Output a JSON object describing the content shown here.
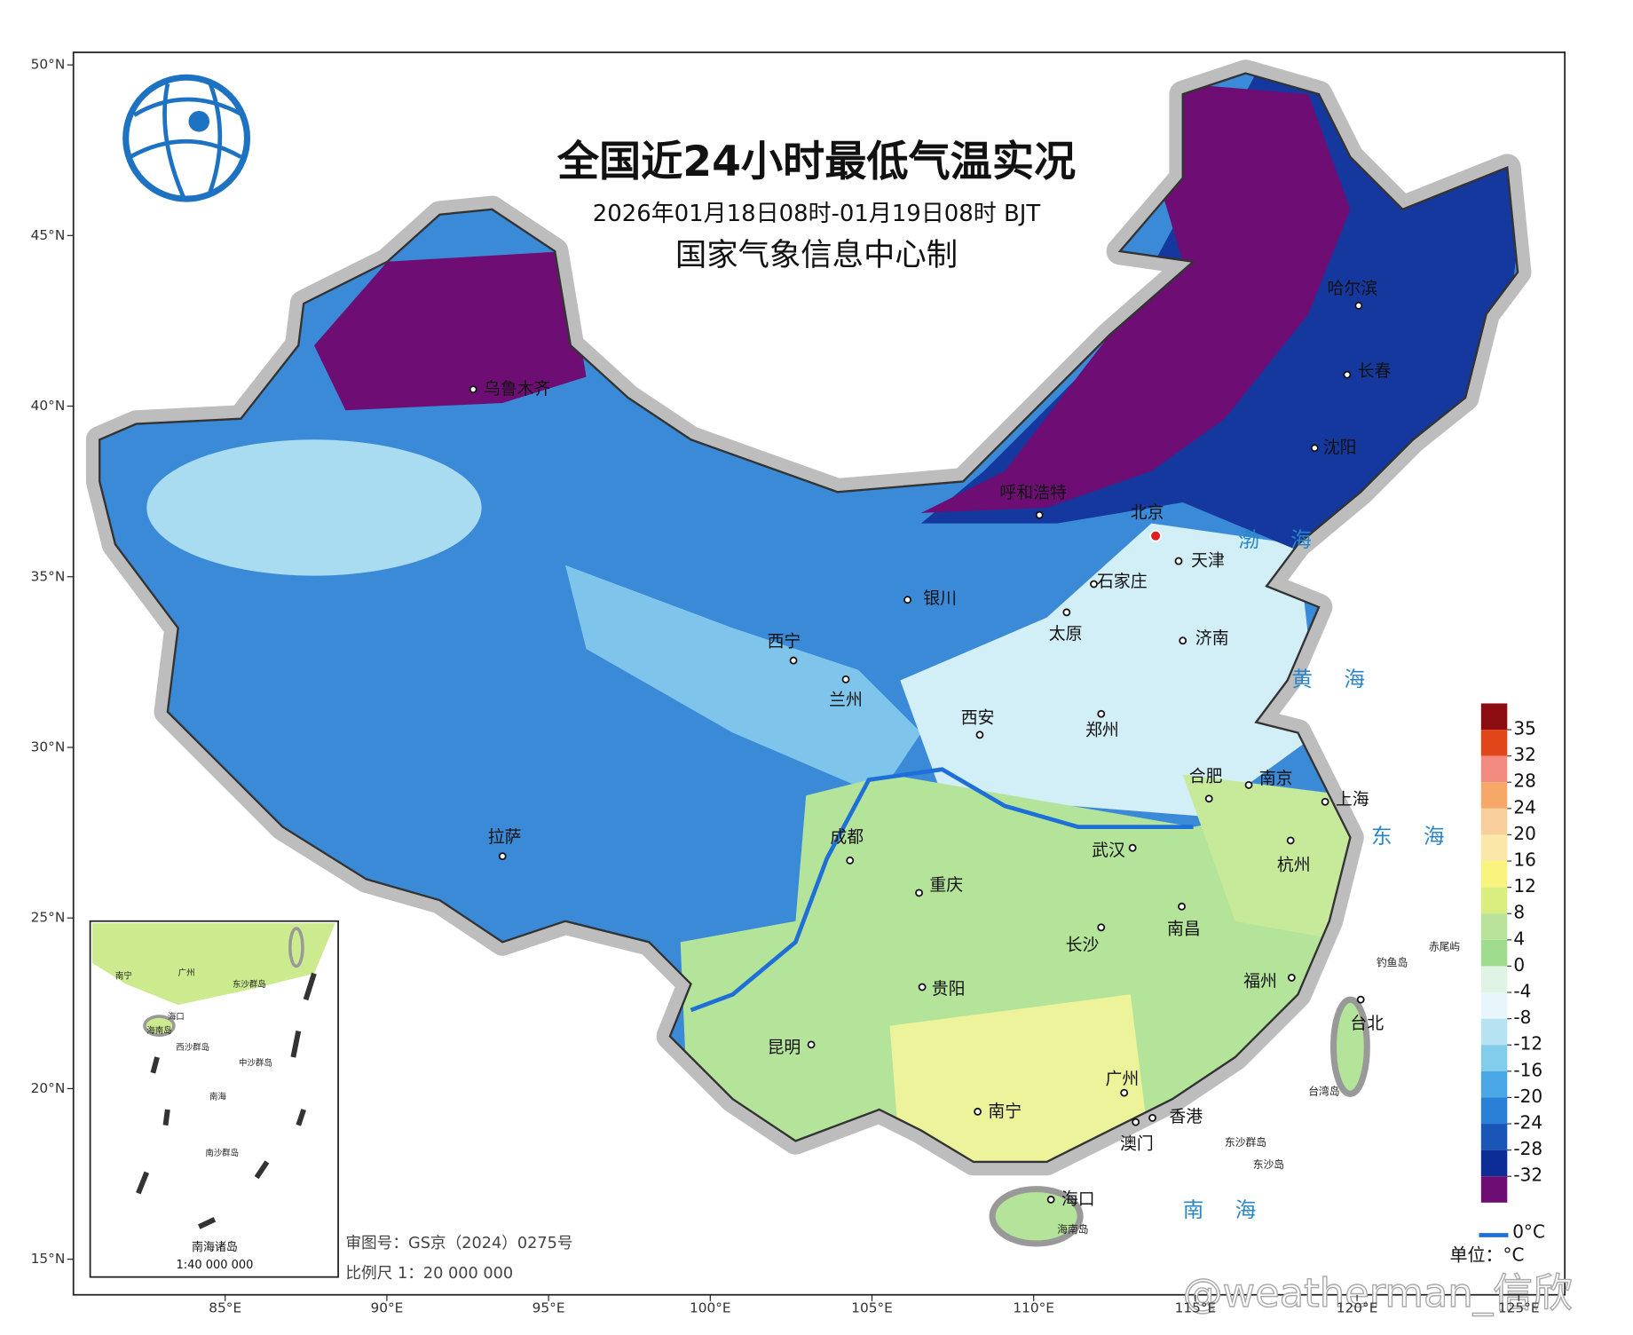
{
  "header": {
    "title": "全国近24小时最低气温实况",
    "subtitle": "2026年01月18日08时-01月19日08时 BJT",
    "producer": "国家气象信息中心制"
  },
  "axes": {
    "lat_ticks": [
      {
        "value": 50,
        "label": "50°N"
      },
      {
        "value": 45,
        "label": "45°N"
      },
      {
        "value": 40,
        "label": "40°N"
      },
      {
        "value": 35,
        "label": "35°N"
      },
      {
        "value": 30,
        "label": "30°N"
      },
      {
        "value": 25,
        "label": "25°N"
      },
      {
        "value": 20,
        "label": "20°N"
      },
      {
        "value": 15,
        "label": "15°N"
      }
    ],
    "lon_ticks": [
      {
        "value": 85,
        "label": "85°E"
      },
      {
        "value": 90,
        "label": "90°E"
      },
      {
        "value": 95,
        "label": "95°E"
      },
      {
        "value": 100,
        "label": "100°E"
      },
      {
        "value": 105,
        "label": "105°E"
      },
      {
        "value": 110,
        "label": "110°E"
      },
      {
        "value": 115,
        "label": "115°E"
      },
      {
        "value": 120,
        "label": "120°E"
      },
      {
        "value": 125,
        "label": "125°E"
      }
    ]
  },
  "legend": {
    "levels": [
      35,
      32,
      28,
      24,
      20,
      16,
      12,
      8,
      4,
      0,
      -4,
      -8,
      -12,
      -16,
      -20,
      -24,
      -28,
      -32
    ],
    "colors": [
      "#8b0d12",
      "#e0461a",
      "#f28a80",
      "#f5a868",
      "#f8cf9c",
      "#fbe7a8",
      "#f7f37c",
      "#d9ee7e",
      "#b9e39a",
      "#9fdc8e",
      "#dff4e4",
      "#e6f6fb",
      "#b6e2f2",
      "#82ccec",
      "#4aa8e6",
      "#2a7fd6",
      "#1a56b8",
      "#0c2c96",
      "#6e0e74"
    ],
    "zero_line_label": "0°C",
    "zero_line_color": "#1f6fd8",
    "unit": "单位：°C"
  },
  "cities": [
    {
      "name": "乌鲁木齐"
    },
    {
      "name": "哈尔滨"
    },
    {
      "name": "长春"
    },
    {
      "name": "沈阳"
    },
    {
      "name": "呼和浩特"
    },
    {
      "name": "北京",
      "capital": true
    },
    {
      "name": "天津"
    },
    {
      "name": "石家庄"
    },
    {
      "name": "太原"
    },
    {
      "name": "银川"
    },
    {
      "name": "济南"
    },
    {
      "name": "西宁"
    },
    {
      "name": "兰州"
    },
    {
      "name": "西安"
    },
    {
      "name": "郑州"
    },
    {
      "name": "合肥"
    },
    {
      "name": "南京"
    },
    {
      "name": "上海"
    },
    {
      "name": "拉萨"
    },
    {
      "name": "成都"
    },
    {
      "name": "武汉"
    },
    {
      "name": "杭州"
    },
    {
      "name": "重庆"
    },
    {
      "name": "长沙"
    },
    {
      "name": "南昌"
    },
    {
      "name": "福州"
    },
    {
      "name": "贵阳"
    },
    {
      "name": "台北"
    },
    {
      "name": "昆明"
    },
    {
      "name": "广州"
    },
    {
      "name": "南宁"
    },
    {
      "name": "香港"
    },
    {
      "name": "澳门"
    },
    {
      "name": "海口"
    }
  ],
  "places": [
    "海南岛",
    "台湾岛",
    "东沙群岛",
    "东沙岛",
    "钓鱼岛",
    "赤尾屿"
  ],
  "seas": [
    "渤海",
    "黄海",
    "东海",
    "南海"
  ],
  "inset": {
    "title": "南海诸岛",
    "scale": "1:40 000 000",
    "labels": [
      "南宁",
      "广州",
      "海口",
      "海南岛",
      "东沙群岛",
      "西沙群岛",
      "中沙群岛",
      "南沙群岛",
      "南海"
    ]
  },
  "footer": {
    "approval": "审图号：GS京（2024）0275号",
    "scale": "比例尺 1：20 000 000"
  },
  "watermark": "@weatherman_信欣"
}
